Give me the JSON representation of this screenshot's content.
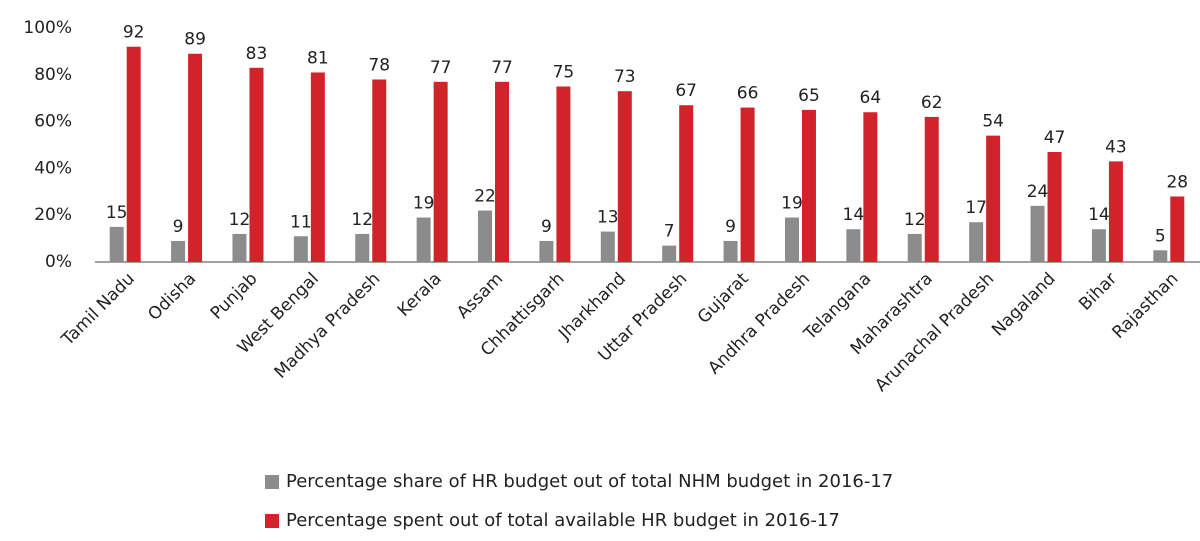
{
  "chart_data": {
    "type": "bar",
    "categories": [
      "Tamil Nadu",
      "Odisha",
      "Punjab",
      "West Bengal",
      "Madhya Pradesh",
      "Kerala",
      "Assam",
      "Chhattisgarh",
      "Jharkhand",
      "Uttar Pradesh",
      "Gujarat",
      "Andhra Pradesh",
      "Telangana",
      "Maharashtra",
      "Arunachal Pradesh",
      "Nagaland",
      "Bihar",
      "Rajasthan"
    ],
    "series": [
      {
        "name": "Percentage share of HR budget out of total NHM budget in 2016-17",
        "color": "#8c8c8c",
        "values": [
          15,
          9,
          12,
          11,
          12,
          19,
          22,
          9,
          13,
          7,
          9,
          19,
          14,
          12,
          17,
          24,
          14,
          5
        ]
      },
      {
        "name": "Percentage spent out of total available HR budget in 2016-17",
        "color": "#d2232a",
        "values": [
          92,
          89,
          83,
          81,
          78,
          77,
          77,
          75,
          73,
          67,
          66,
          65,
          64,
          62,
          54,
          47,
          43,
          28
        ]
      }
    ],
    "ylim": [
      0,
      100
    ],
    "yticks": [
      {
        "value": 0,
        "label": "0%"
      },
      {
        "value": 20,
        "label": "20%"
      },
      {
        "value": 40,
        "label": "40%"
      },
      {
        "value": 60,
        "label": "60%"
      },
      {
        "value": 80,
        "label": "80%"
      },
      {
        "value": 100,
        "label": "100%"
      }
    ]
  }
}
